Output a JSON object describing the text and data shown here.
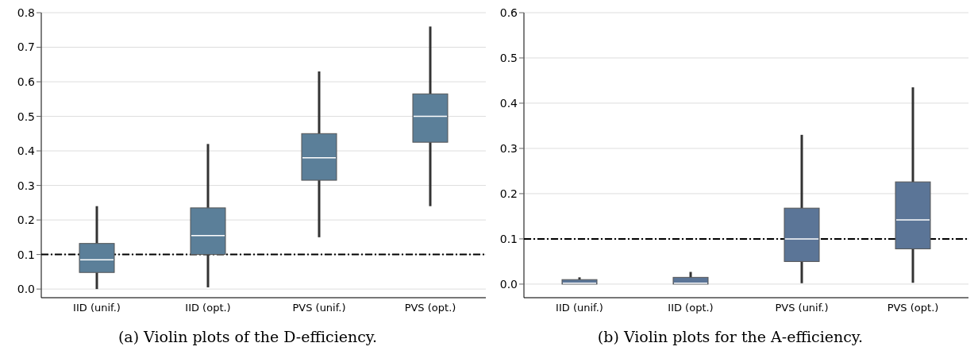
{
  "chart_data": [
    {
      "type": "box",
      "categories": [
        "IID (unif.)",
        "IID (opt.)",
        "PVS (unif.)",
        "PVS (opt.)"
      ],
      "color": "#5b7f99",
      "boxes": [
        {
          "low": 0.0,
          "q1": 0.048,
          "median": 0.085,
          "q3": 0.132,
          "high": 0.24
        },
        {
          "low": 0.005,
          "q1": 0.1,
          "median": 0.155,
          "q3": 0.235,
          "high": 0.42
        },
        {
          "low": 0.15,
          "q1": 0.315,
          "median": 0.38,
          "q3": 0.45,
          "high": 0.63
        },
        {
          "low": 0.24,
          "q1": 0.425,
          "median": 0.5,
          "q3": 0.565,
          "high": 0.76
        }
      ],
      "ylim": [
        -0.025,
        0.8
      ],
      "yticks": [
        {
          "value": 0,
          "label": "0.0"
        },
        0.1,
        0.2,
        0.3,
        0.4,
        0.5,
        0.6,
        0.7,
        0.8
      ],
      "grid": "y",
      "ref_lines": [
        {
          "axis": "y",
          "value": 0.1,
          "color": "#000000",
          "line_style": "dashed"
        }
      ],
      "annotations": [
        "(a) Violin plots of the D-efficiency."
      ]
    },
    {
      "type": "box",
      "categories": [
        "IID (unif.)",
        "IID (opt.)",
        "PVS (unif.)",
        "PVS (opt.)"
      ],
      "color": "#5b7597",
      "boxes": [
        {
          "low": 0.0,
          "q1": 0.0,
          "median": 0.002,
          "q3": 0.01,
          "high": 0.015
        },
        {
          "low": 0.0,
          "q1": 0.0,
          "median": 0.002,
          "q3": 0.015,
          "high": 0.027
        },
        {
          "low": 0.002,
          "q1": 0.05,
          "median": 0.1,
          "q3": 0.168,
          "high": 0.33
        },
        {
          "low": 0.003,
          "q1": 0.078,
          "median": 0.142,
          "q3": 0.226,
          "high": 0.435
        }
      ],
      "ylim": [
        -0.03,
        0.6
      ],
      "yticks": [
        {
          "value": 0,
          "label": "0.0"
        },
        0.1,
        0.2,
        0.3,
        0.4,
        0.5,
        0.6
      ],
      "grid": "y",
      "ref_lines": [
        {
          "axis": "y",
          "value": 0.1,
          "color": "#000000",
          "line_style": "dashed"
        }
      ],
      "annotations": [
        "(b) Violin plots for the A-efficiency."
      ]
    }
  ]
}
